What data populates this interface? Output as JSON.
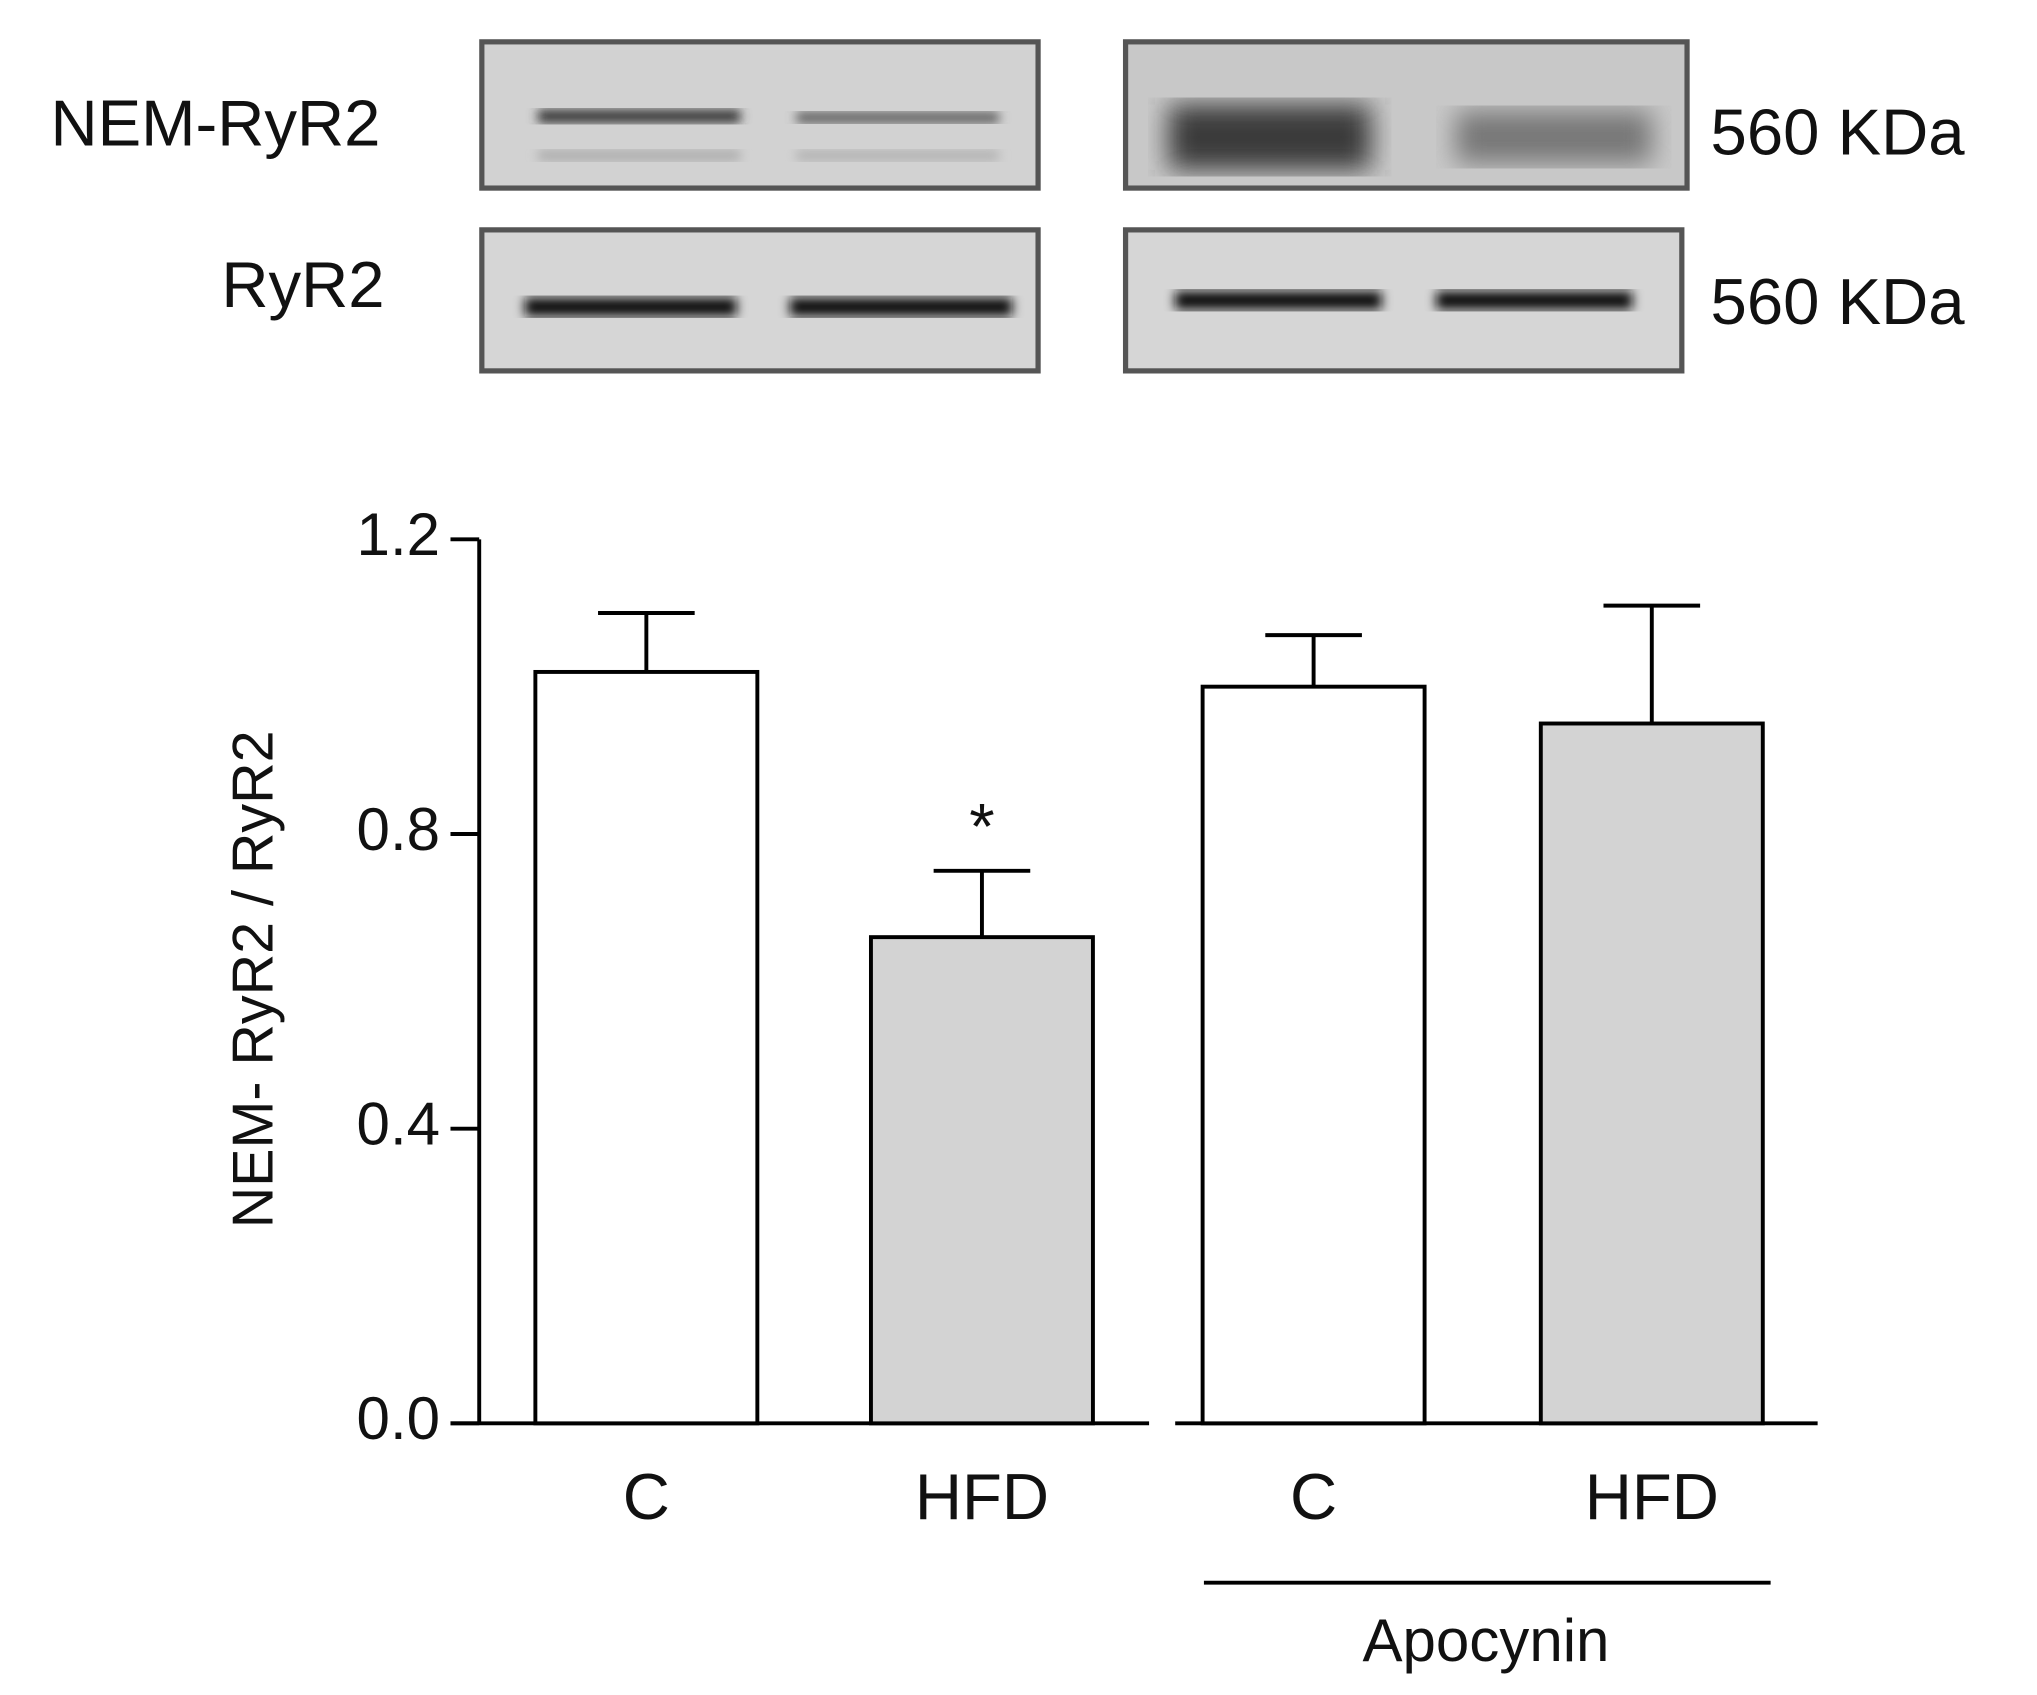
{
  "blots": {
    "rows": [
      {
        "label": "NEM-RyR2",
        "size": "560 KDa"
      },
      {
        "label": "RyR2",
        "size": "560 KDa"
      }
    ]
  },
  "chart_data": {
    "type": "bar",
    "y_label": "NEM- RyR2 / RyR2",
    "categories": [
      "C",
      "HFD",
      "C",
      "HFD"
    ],
    "values": [
      1.02,
      0.66,
      1.0,
      0.95
    ],
    "errors": [
      0.08,
      0.09,
      0.07,
      0.16
    ],
    "colors": [
      "#ffffff",
      "#d3d3d3",
      "#ffffff",
      "#d3d3d3"
    ],
    "significance_labels": [
      null,
      "*",
      null,
      null
    ],
    "group_label": "Apocynin",
    "ylim": [
      0,
      1.2
    ],
    "yticks": [
      {
        "value": 0,
        "label": "0.0"
      },
      {
        "value": 0.4,
        "label": "0.4"
      },
      {
        "value": 0.8,
        "label": "0.8"
      },
      {
        "value": 1.2,
        "label": "1.2"
      }
    ]
  }
}
